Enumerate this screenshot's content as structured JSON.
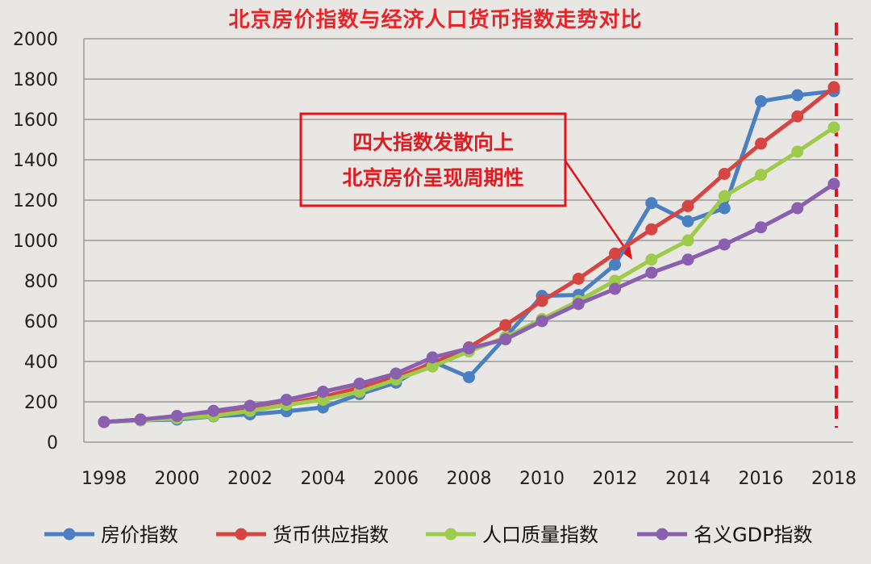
{
  "chart_data": {
    "type": "line",
    "title": "北京房价指数与经济人口货币指数走势对比",
    "xlabel": "",
    "ylabel": "",
    "ylim": [
      0,
      2000
    ],
    "yticks": [
      0,
      200,
      400,
      600,
      800,
      1000,
      1200,
      1400,
      1600,
      1800,
      2000
    ],
    "xticks": [
      1998,
      2000,
      2002,
      2004,
      2006,
      2008,
      2010,
      2012,
      2014,
      2016,
      2018
    ],
    "x": [
      1998,
      1999,
      2000,
      2001,
      2002,
      2003,
      2004,
      2005,
      2006,
      2007,
      2008,
      2009,
      2010,
      2011,
      2012,
      2013,
      2014,
      2015,
      2016,
      2017,
      2018
    ],
    "grid": true,
    "legend_position": "bottom",
    "series": [
      {
        "name": "房价指数",
        "color": "#4a7fc1",
        "values": [
          100,
          108,
          112,
          128,
          138,
          153,
          172,
          238,
          295,
          400,
          322,
          520,
          725,
          730,
          880,
          1185,
          1095,
          1160,
          1690,
          1720,
          1740
        ]
      },
      {
        "name": "货币供应指数",
        "color": "#d64541",
        "values": [
          100,
          112,
          126,
          142,
          160,
          190,
          225,
          270,
          320,
          390,
          470,
          580,
          700,
          810,
          935,
          1055,
          1170,
          1330,
          1480,
          1615,
          1760
        ]
      },
      {
        "name": "人口质量指数",
        "color": "#9ecb4a",
        "values": [
          100,
          108,
          118,
          130,
          155,
          185,
          210,
          250,
          310,
          375,
          450,
          520,
          610,
          700,
          800,
          905,
          1000,
          1220,
          1325,
          1440,
          1560
        ]
      },
      {
        "name": "名义GDP指数",
        "color": "#8a5fb0",
        "values": [
          100,
          112,
          130,
          155,
          180,
          210,
          250,
          290,
          340,
          420,
          465,
          510,
          600,
          685,
          760,
          840,
          905,
          980,
          1065,
          1160,
          1280
        ]
      }
    ],
    "annotation": {
      "lines": [
        "四大指数发散向上",
        "北京房价呈现周期性"
      ]
    }
  }
}
